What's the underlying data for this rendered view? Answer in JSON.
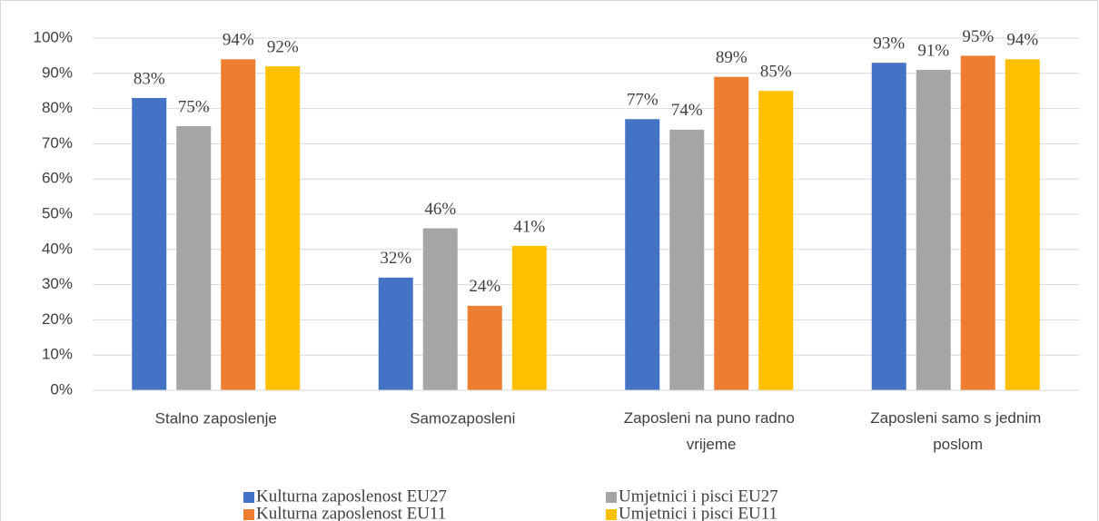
{
  "chart_data": {
    "type": "bar",
    "categories": [
      "Stalno zaposlenje",
      "Samozaposleni",
      "Zaposleni na puno radno vrijeme",
      "Zaposleni samo s jednim poslom"
    ],
    "series": [
      {
        "name": "Kulturna zaposlenost EU27",
        "color": "#4472c4",
        "values": [
          83,
          32,
          77,
          93
        ],
        "value_labels": [
          "83%",
          "32%",
          "77%",
          "93%"
        ]
      },
      {
        "name": "Umjetnici i pisci EU27",
        "color": "#a5a5a5",
        "values": [
          75,
          46,
          74,
          91
        ],
        "value_labels": [
          "75%",
          "46%",
          "74%",
          "91%"
        ]
      },
      {
        "name": "Kulturna zaposlenost EU11",
        "color": "#ed7d31",
        "values": [
          94,
          24,
          89,
          95
        ],
        "value_labels": [
          "94%",
          "24%",
          "89%",
          "95%"
        ]
      },
      {
        "name": "Umjetnici i pisci EU11",
        "color": "#ffc000",
        "values": [
          92,
          41,
          85,
          94
        ],
        "value_labels": [
          "92%",
          "41%",
          "85%",
          "94%"
        ]
      }
    ],
    "ylim": [
      0,
      100
    ],
    "yticks": [
      {
        "value": 0,
        "label": "0%"
      },
      {
        "value": 10,
        "label": "10%"
      },
      {
        "value": 20,
        "label": "20%"
      },
      {
        "value": 30,
        "label": "30%"
      },
      {
        "value": 40,
        "label": "40%"
      },
      {
        "value": 50,
        "label": "50%"
      },
      {
        "value": 60,
        "label": "60%"
      },
      {
        "value": 70,
        "label": "70%"
      },
      {
        "value": 80,
        "label": "80%"
      },
      {
        "value": 90,
        "label": "90%"
      },
      {
        "value": 100,
        "label": "100%"
      }
    ],
    "grid": true,
    "legend": "bottom"
  }
}
